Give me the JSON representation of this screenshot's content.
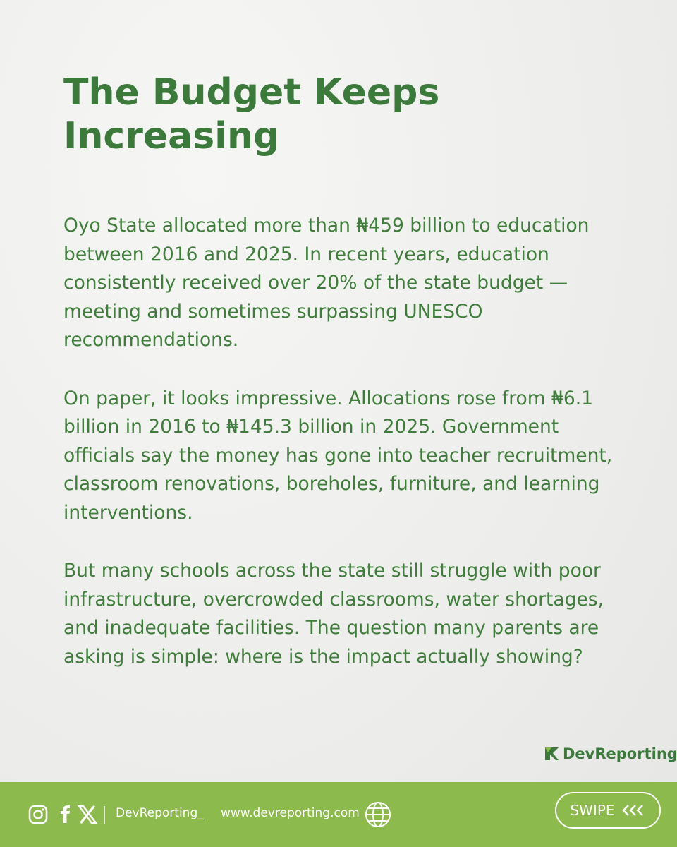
{
  "header": {
    "title": "The Budget Keeps Increasing"
  },
  "body": {
    "paragraphs": [
      "Oyo State allocated more than ₦459 billion to education between 2016 and 2025. In recent years, education consistently received over 20% of the state budget — meeting and sometimes surpassing UNESCO recommendations.",
      "On paper, it looks impressive. Allocations rose from ₦6.1 billion in 2016 to ₦145.3 billion in 2025. Government officials say the money has gone into teacher recruitment, classroom renovations, boreholes, furniture, and learning interventions.",
      "But many schools across the state still struggle with poor infrastructure, overcrowded classrooms, water shortages, and inadequate facilities. The question many parents are asking is simple: where is the impact actually showing?"
    ]
  },
  "logo": {
    "text": "DevReporting"
  },
  "footer": {
    "handle": "DevReporting_",
    "website": "www.devreporting.com",
    "button": "SWIPE"
  }
}
